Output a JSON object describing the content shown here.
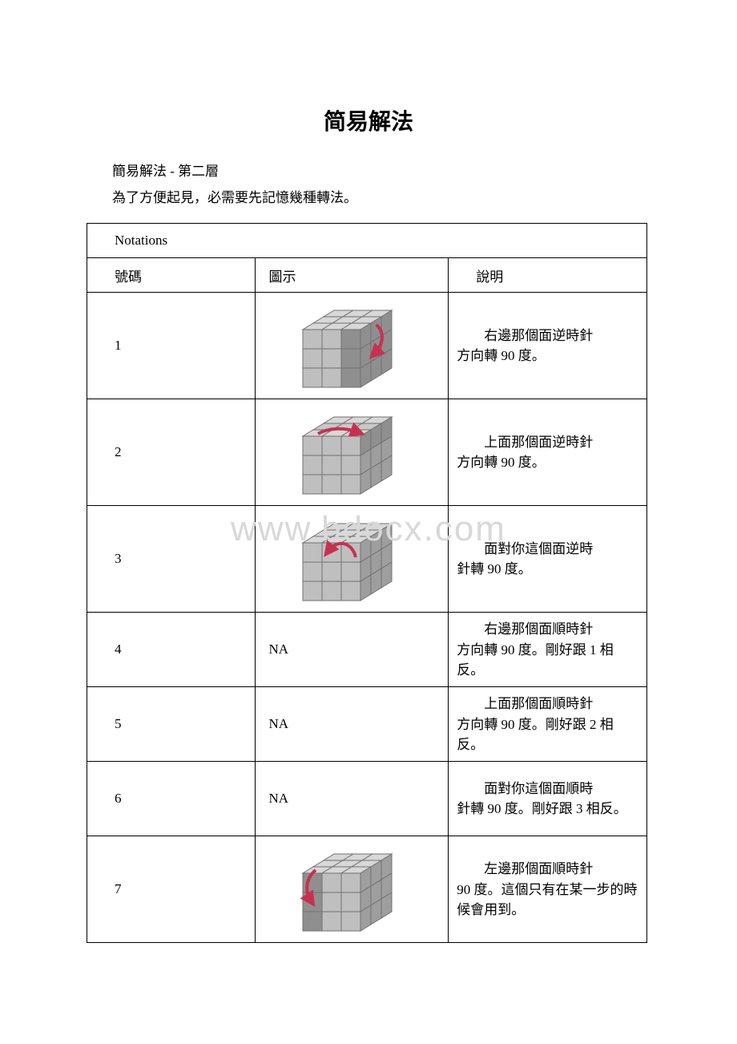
{
  "title": "简易解法",
  "intro_line1": "簡易解法 - 第二層",
  "intro_line2": "為了方便起見，必需要先記憶幾種轉法。",
  "table_caption": "Notations",
  "headers": {
    "num": "號碼",
    "img": "圖示",
    "desc": "說明"
  },
  "rows": [
    {
      "num": "1",
      "img_type": "cube",
      "arrow": "right-down",
      "desc_first": "右邊那個面逆時針",
      "desc_rest": "方向轉 90 度。"
    },
    {
      "num": "2",
      "img_type": "cube",
      "arrow": "top-right",
      "desc_first": "上面那個面逆時針",
      "desc_rest": "方向轉 90 度。"
    },
    {
      "num": "3",
      "img_type": "cube",
      "arrow": "front-ccw",
      "desc_first": "面對你這個面逆時",
      "desc_rest": "針轉 90 度。"
    },
    {
      "num": "4",
      "img_type": "na",
      "na_text": "NA",
      "desc_first": "右邊那個面順時針",
      "desc_rest": "方向轉 90 度。剛好跟 1 相反。"
    },
    {
      "num": "5",
      "img_type": "na",
      "na_text": "NA",
      "desc_first": "上面那個面順時針",
      "desc_rest": "方向轉 90 度。剛好跟 2 相反。"
    },
    {
      "num": "6",
      "img_type": "na",
      "na_text": "NA",
      "desc_first": "面對你這個面順時",
      "desc_rest": "針轉 90 度。剛好跟 3 相反。"
    },
    {
      "num": "7",
      "img_type": "cube",
      "arrow": "left-down",
      "desc_first": "左邊那個面順時針",
      "desc_rest": "90 度。這個只有在某一步的時候會用到。"
    }
  ],
  "watermark": "www.bdocx.com",
  "cube_style": {
    "light": "#d8d8d8",
    "mid": "#bfbfbf",
    "dark": "#9e9e9e",
    "stroke": "#707070",
    "arrow": "#c9304f",
    "highlight_light": "#c8c8c8",
    "highlight_dark": "#8f8f8f"
  }
}
